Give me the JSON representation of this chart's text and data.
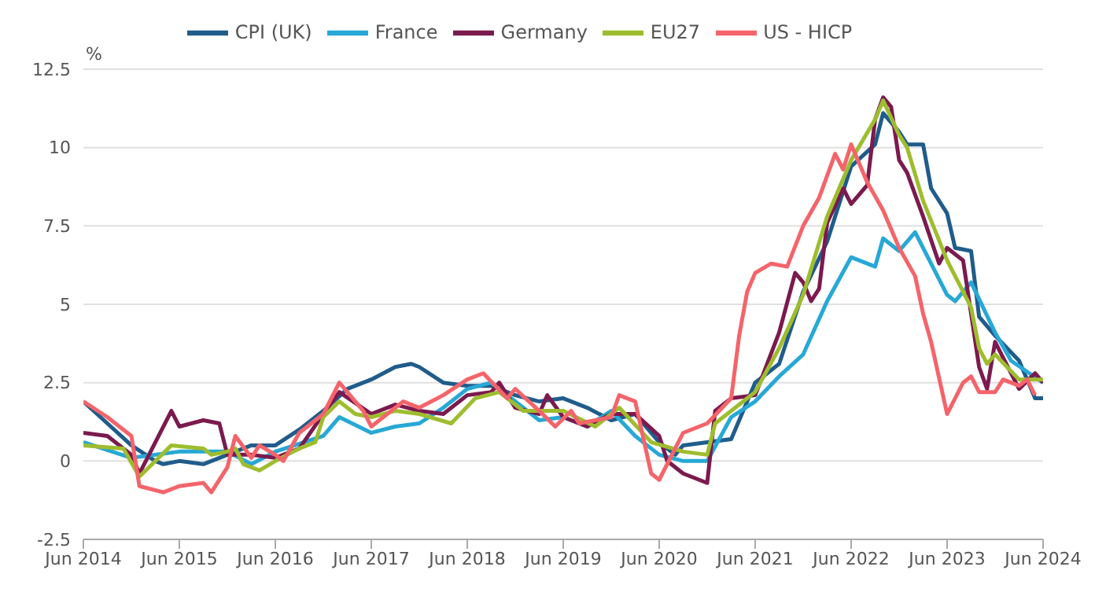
{
  "chart_data": {
    "type": "line",
    "ylabel": "%",
    "xlim": [
      "2014-06",
      "2024-06"
    ],
    "ylim": [
      -2.5,
      12.5
    ],
    "yticks": [
      -2.5,
      0,
      2.5,
      5,
      7.5,
      10,
      12.5
    ],
    "xticks": [
      {
        "value": "2014-06",
        "label": "Jun 2014"
      },
      {
        "value": "2015-06",
        "label": "Jun 2015"
      },
      {
        "value": "2016-06",
        "label": "Jun 2016"
      },
      {
        "value": "2017-06",
        "label": "Jun 2017"
      },
      {
        "value": "2018-06",
        "label": "Jun 2018"
      },
      {
        "value": "2019-06",
        "label": "Jun 2019"
      },
      {
        "value": "2020-06",
        "label": "Jun 2020"
      },
      {
        "value": "2021-06",
        "label": "Jun 2021"
      },
      {
        "value": "2022-06",
        "label": "Jun 2022"
      },
      {
        "value": "2023-06",
        "label": "Jun 2023"
      },
      {
        "value": "2024-06",
        "label": "Jun 2024"
      }
    ],
    "grid": "y",
    "legend": "top",
    "marker": "none",
    "line_style": "solid",
    "series": [
      {
        "name": "CPI (UK)",
        "color": "#1f5c8b",
        "x": [
          "2014-06",
          "2014-09",
          "2014-12",
          "2015-03",
          "2015-04",
          "2015-06",
          "2015-09",
          "2015-12",
          "2016-03",
          "2016-06",
          "2016-09",
          "2016-12",
          "2017-03",
          "2017-06",
          "2017-09",
          "2017-11",
          "2017-12",
          "2018-03",
          "2018-06",
          "2018-09",
          "2018-12",
          "2019-03",
          "2019-06",
          "2019-09",
          "2019-12",
          "2020-03",
          "2020-06",
          "2020-08",
          "2020-09",
          "2020-12",
          "2021-03",
          "2021-06",
          "2021-09",
          "2021-12",
          "2022-03",
          "2022-06",
          "2022-09",
          "2022-10",
          "2022-12",
          "2023-01",
          "2023-03",
          "2023-04",
          "2023-06",
          "2023-07",
          "2023-09",
          "2023-10",
          "2023-12",
          "2024-03",
          "2024-05",
          "2024-06"
        ],
        "values": [
          1.9,
          1.2,
          0.5,
          0.0,
          -0.1,
          0.0,
          -0.1,
          0.2,
          0.5,
          0.5,
          1.0,
          1.6,
          2.3,
          2.6,
          3.0,
          3.1,
          3.0,
          2.5,
          2.4,
          2.4,
          2.1,
          1.9,
          2.0,
          1.7,
          1.3,
          1.5,
          0.6,
          0.2,
          0.5,
          0.6,
          0.7,
          2.5,
          3.1,
          5.4,
          7.0,
          9.4,
          10.1,
          11.1,
          10.5,
          10.1,
          10.1,
          8.7,
          7.9,
          6.8,
          6.7,
          4.6,
          4.0,
          3.2,
          2.0,
          2.0
        ]
      },
      {
        "name": "France",
        "color": "#27a8d6",
        "x": [
          "2014-06",
          "2014-12",
          "2015-06",
          "2015-12",
          "2016-03",
          "2016-06",
          "2016-12",
          "2017-02",
          "2017-06",
          "2017-09",
          "2017-12",
          "2018-03",
          "2018-06",
          "2018-09",
          "2018-12",
          "2019-03",
          "2019-06",
          "2019-09",
          "2019-12",
          "2020-03",
          "2020-06",
          "2020-09",
          "2020-12",
          "2021-03",
          "2021-06",
          "2021-09",
          "2021-12",
          "2022-03",
          "2022-06",
          "2022-09",
          "2022-10",
          "2022-12",
          "2023-02",
          "2023-06",
          "2023-07",
          "2023-09",
          "2023-12",
          "2024-02",
          "2024-06"
        ],
        "values": [
          0.6,
          0.1,
          0.3,
          0.3,
          -0.1,
          0.3,
          0.8,
          1.4,
          0.9,
          1.1,
          1.2,
          1.7,
          2.3,
          2.5,
          1.9,
          1.3,
          1.4,
          1.1,
          1.6,
          0.8,
          0.2,
          0.0,
          0.0,
          1.4,
          1.9,
          2.7,
          3.4,
          5.1,
          6.5,
          6.2,
          7.1,
          6.7,
          7.3,
          5.3,
          5.1,
          5.7,
          4.1,
          3.2,
          2.5
        ]
      },
      {
        "name": "Germany",
        "color": "#7b1a4e",
        "x": [
          "2014-06",
          "2014-09",
          "2014-12",
          "2015-01",
          "2015-05",
          "2015-06",
          "2015-09",
          "2015-11",
          "2015-12",
          "2016-03",
          "2016-06",
          "2016-09",
          "2016-12",
          "2017-02",
          "2017-06",
          "2017-09",
          "2017-12",
          "2018-03",
          "2018-06",
          "2018-09",
          "2018-10",
          "2018-12",
          "2019-03",
          "2019-04",
          "2019-06",
          "2019-09",
          "2019-12",
          "2020-03",
          "2020-06",
          "2020-07",
          "2020-09",
          "2020-12",
          "2021-01",
          "2021-03",
          "2021-06",
          "2021-09",
          "2021-11",
          "2021-12",
          "2022-01",
          "2022-02",
          "2022-03",
          "2022-05",
          "2022-06",
          "2022-08",
          "2022-09",
          "2022-10",
          "2022-11",
          "2022-12",
          "2023-01",
          "2023-03",
          "2023-05",
          "2023-06",
          "2023-08",
          "2023-10",
          "2023-11",
          "2023-12",
          "2024-03",
          "2024-05",
          "2024-06"
        ],
        "values": [
          0.9,
          0.8,
          0.2,
          -0.4,
          1.6,
          1.1,
          1.3,
          1.2,
          0.2,
          0.2,
          0.1,
          0.4,
          1.5,
          2.2,
          1.5,
          1.8,
          1.6,
          1.5,
          2.1,
          2.2,
          2.5,
          1.7,
          1.5,
          2.1,
          1.4,
          1.1,
          1.5,
          1.5,
          0.8,
          0.0,
          -0.4,
          -0.7,
          1.6,
          2.0,
          2.1,
          4.1,
          6.0,
          5.7,
          5.1,
          5.5,
          7.6,
          8.7,
          8.2,
          8.8,
          10.9,
          11.6,
          11.3,
          9.6,
          9.2,
          7.8,
          6.3,
          6.8,
          6.4,
          3.0,
          2.3,
          3.8,
          2.3,
          2.8,
          2.5
        ]
      },
      {
        "name": "EU27",
        "color": "#9ebd2e",
        "x": [
          "2014-06",
          "2014-11",
          "2015-01",
          "2015-05",
          "2015-09",
          "2015-10",
          "2015-12",
          "2016-01",
          "2016-02",
          "2016-04",
          "2016-06",
          "2016-09",
          "2016-11",
          "2016-12",
          "2017-02",
          "2017-04",
          "2017-06",
          "2017-09",
          "2017-12",
          "2018-04",
          "2018-07",
          "2018-10",
          "2019-01",
          "2019-06",
          "2019-10",
          "2020-01",
          "2020-05",
          "2020-09",
          "2020-12",
          "2021-01",
          "2021-06",
          "2021-09",
          "2021-12",
          "2022-03",
          "2022-06",
          "2022-09",
          "2022-10",
          "2022-12",
          "2023-01",
          "2023-03",
          "2023-06",
          "2023-09",
          "2023-10",
          "2023-11",
          "2023-12",
          "2024-03",
          "2024-06"
        ],
        "values": [
          0.5,
          0.4,
          -0.5,
          0.5,
          0.4,
          0.2,
          0.3,
          0.4,
          -0.1,
          -0.3,
          0.0,
          0.4,
          0.6,
          1.4,
          1.9,
          1.5,
          1.4,
          1.6,
          1.5,
          1.2,
          2.0,
          2.2,
          1.6,
          1.6,
          1.1,
          1.7,
          0.6,
          0.3,
          0.2,
          1.2,
          2.2,
          3.6,
          5.3,
          7.8,
          9.6,
          10.9,
          11.5,
          10.4,
          10.0,
          8.3,
          6.4,
          4.9,
          3.6,
          3.1,
          3.4,
          2.6,
          2.6
        ]
      },
      {
        "name": "US - HICP",
        "color": "#f4646a",
        "x": [
          "2014-06",
          "2014-09",
          "2014-12",
          "2015-01",
          "2015-04",
          "2015-06",
          "2015-09",
          "2015-10",
          "2015-12",
          "2016-01",
          "2016-03",
          "2016-04",
          "2016-06",
          "2016-07",
          "2016-09",
          "2016-12",
          "2017-02",
          "2017-05",
          "2017-06",
          "2017-08",
          "2017-10",
          "2017-12",
          "2018-03",
          "2018-06",
          "2018-08",
          "2018-11",
          "2018-12",
          "2019-03",
          "2019-05",
          "2019-07",
          "2019-08",
          "2019-12",
          "2020-01",
          "2020-03",
          "2020-05",
          "2020-06",
          "2020-09",
          "2020-12",
          "2021-03",
          "2021-04",
          "2021-05",
          "2021-06",
          "2021-08",
          "2021-10",
          "2021-12",
          "2022-02",
          "2022-04",
          "2022-05",
          "2022-06",
          "2022-08",
          "2022-10",
          "2022-12",
          "2023-02",
          "2023-03",
          "2023-04",
          "2023-06",
          "2023-08",
          "2023-09",
          "2023-10",
          "2023-12",
          "2024-01",
          "2024-03",
          "2024-04",
          "2024-05"
        ],
        "values": [
          1.9,
          1.4,
          0.8,
          -0.8,
          -1.0,
          -0.8,
          -0.7,
          -1.0,
          -0.2,
          0.8,
          0.1,
          0.5,
          0.2,
          0.0,
          0.9,
          1.5,
          2.5,
          1.6,
          1.1,
          1.5,
          1.9,
          1.7,
          2.1,
          2.6,
          2.8,
          2.0,
          2.3,
          1.6,
          1.1,
          1.6,
          1.2,
          1.4,
          2.1,
          1.9,
          -0.4,
          -0.6,
          0.9,
          1.2,
          2.0,
          4.0,
          5.4,
          6.0,
          6.3,
          6.2,
          7.5,
          8.4,
          9.8,
          9.3,
          10.1,
          8.9,
          8.0,
          6.8,
          5.9,
          4.7,
          3.8,
          1.5,
          2.5,
          2.7,
          2.2,
          2.2,
          2.6,
          2.4,
          2.6,
          2.1
        ]
      }
    ]
  }
}
